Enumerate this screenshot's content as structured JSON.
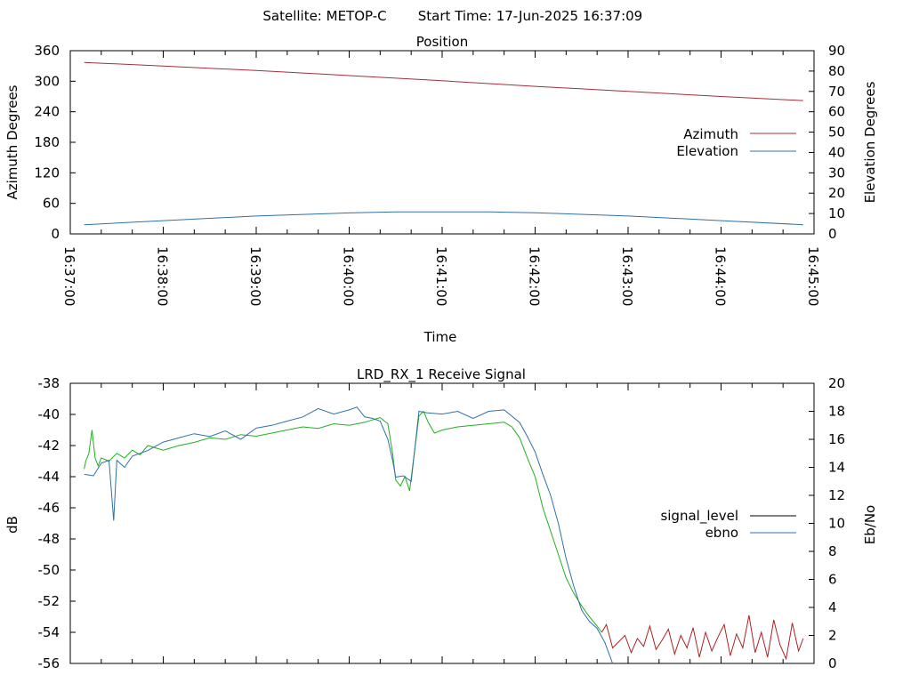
{
  "header": {
    "satellite_label": "Satellite: METOP-C",
    "start_time_label": "Start Time: 17-Jun-2025 16:37:09"
  },
  "colors": {
    "azimuth": "#a0303a",
    "elevation": "#3070a8",
    "signal_level": "#000000",
    "ebno": "#3070a8",
    "signal_trace_green": "#20b020",
    "signal_trace_red": "#b02020"
  },
  "chart_data": [
    {
      "type": "line",
      "title": "Position",
      "xlabel": "Time",
      "ylabel": "Azimuth Degrees",
      "y2label": "Elevation Degrees",
      "xlim": [
        "16:37:00",
        "16:45:00"
      ],
      "x_ticks": [
        "16:37:00",
        "16:38:00",
        "16:39:00",
        "16:40:00",
        "16:41:00",
        "16:42:00",
        "16:43:00",
        "16:44:00",
        "16:45:00"
      ],
      "ylim": [
        0,
        360
      ],
      "y_ticks": [
        "0",
        "60",
        "120",
        "180",
        "240",
        "300",
        "360"
      ],
      "y2lim": [
        0,
        90
      ],
      "y2_ticks": [
        "0",
        "10",
        "20",
        "30",
        "40",
        "50",
        "60",
        "70",
        "80",
        "90"
      ],
      "legend_position": "right",
      "series": [
        {
          "name": "Azimuth",
          "axis": "y",
          "color_key": "azimuth",
          "x": [
            "16:37:09",
            "16:38:00",
            "16:39:00",
            "16:40:00",
            "16:41:00",
            "16:42:00",
            "16:43:00",
            "16:44:00",
            "16:44:53"
          ],
          "values": [
            337,
            330,
            321,
            311,
            301,
            290,
            280,
            270,
            262
          ]
        },
        {
          "name": "Elevation",
          "axis": "y2",
          "color_key": "elevation",
          "x": [
            "16:37:09",
            "16:38:00",
            "16:39:00",
            "16:40:00",
            "16:40:30",
            "16:41:30",
            "16:42:00",
            "16:43:00",
            "16:44:00",
            "16:44:53"
          ],
          "values": [
            4.5,
            6.5,
            8.8,
            10.3,
            10.8,
            10.8,
            10.4,
            8.8,
            6.5,
            4.5
          ]
        }
      ]
    },
    {
      "type": "line",
      "title": "LRD_RX_1 Receive Signal",
      "xlabel": "",
      "ylabel": "dB",
      "y2label": "Eb/No",
      "xlim": [
        "16:37:00",
        "16:45:00"
      ],
      "ylim": [
        -56,
        -38
      ],
      "y_ticks": [
        "-56",
        "-54",
        "-52",
        "-50",
        "-48",
        "-46",
        "-44",
        "-42",
        "-40",
        "-38"
      ],
      "y2lim": [
        0,
        20
      ],
      "y2_ticks": [
        "0",
        "2",
        "4",
        "6",
        "8",
        "10",
        "12",
        "14",
        "16",
        "18",
        "20"
      ],
      "legend_position": "right",
      "series": [
        {
          "name": "signal_level",
          "axis": "y",
          "color_key": "signal_trace_green",
          "x": [
            "16:37:09",
            "16:37:10",
            "16:37:12",
            "16:37:14",
            "16:37:16",
            "16:37:18",
            "16:37:20",
            "16:37:25",
            "16:37:30",
            "16:37:35",
            "16:37:40",
            "16:37:45",
            "16:37:50",
            "16:38:00",
            "16:38:10",
            "16:38:20",
            "16:38:30",
            "16:38:40",
            "16:38:50",
            "16:39:00",
            "16:39:10",
            "16:39:20",
            "16:39:30",
            "16:39:40",
            "16:39:50",
            "16:40:00",
            "16:40:10",
            "16:40:20",
            "16:40:25",
            "16:40:28",
            "16:40:30",
            "16:40:33",
            "16:40:36",
            "16:40:39",
            "16:40:42",
            "16:40:45",
            "16:40:48",
            "16:40:51",
            "16:40:55",
            "16:41:00",
            "16:41:10",
            "16:41:20",
            "16:41:30",
            "16:41:40",
            "16:41:45",
            "16:41:50",
            "16:41:55",
            "16:42:00",
            "16:42:05",
            "16:42:10",
            "16:42:15",
            "16:42:20",
            "16:42:25",
            "16:42:30",
            "16:42:35",
            "16:42:40",
            "16:42:43"
          ],
          "values": [
            -43.5,
            -43.0,
            -42.5,
            -41.0,
            -42.8,
            -43.3,
            -42.8,
            -43.0,
            -42.5,
            -42.8,
            -42.3,
            -42.6,
            -42.0,
            -42.3,
            -42.0,
            -41.8,
            -41.5,
            -41.6,
            -41.3,
            -41.4,
            -41.2,
            -41.0,
            -40.8,
            -40.9,
            -40.6,
            -40.7,
            -40.5,
            -40.2,
            -40.6,
            -42.5,
            -44.2,
            -44.6,
            -44.0,
            -44.9,
            -42.5,
            -40.1,
            -39.8,
            -40.5,
            -41.2,
            -41.0,
            -40.8,
            -40.7,
            -40.6,
            -40.5,
            -40.8,
            -41.5,
            -42.8,
            -44.0,
            -46.0,
            -47.5,
            -49.0,
            -50.5,
            -51.5,
            -52.3,
            -53.0,
            -53.6,
            -54.0
          ]
        },
        {
          "name": "ebno",
          "axis": "y2",
          "color_key": "ebno",
          "x": [
            "16:37:09",
            "16:37:15",
            "16:37:20",
            "16:37:25",
            "16:37:28",
            "16:37:30",
            "16:37:35",
            "16:37:40",
            "16:37:50",
            "16:38:00",
            "16:38:10",
            "16:38:20",
            "16:38:30",
            "16:38:40",
            "16:38:50",
            "16:39:00",
            "16:39:10",
            "16:39:20",
            "16:39:30",
            "16:39:40",
            "16:39:50",
            "16:40:00",
            "16:40:05",
            "16:40:10",
            "16:40:15",
            "16:40:20",
            "16:40:25",
            "16:40:28",
            "16:40:30",
            "16:40:35",
            "16:40:40",
            "16:40:45",
            "16:40:50",
            "16:41:00",
            "16:41:10",
            "16:41:20",
            "16:41:30",
            "16:41:40",
            "16:41:50",
            "16:41:55",
            "16:42:00",
            "16:42:05",
            "16:42:10",
            "16:42:15",
            "16:42:20",
            "16:42:25",
            "16:42:30",
            "16:42:35",
            "16:42:40",
            "16:42:45",
            "16:42:50"
          ],
          "values": [
            13.5,
            13.4,
            14.3,
            14.5,
            10.2,
            14.5,
            14.0,
            14.8,
            15.2,
            15.8,
            16.1,
            16.4,
            16.2,
            16.6,
            16.0,
            16.8,
            17.0,
            17.3,
            17.6,
            18.2,
            17.8,
            18.1,
            18.3,
            17.6,
            17.5,
            17.3,
            16.0,
            14.5,
            13.3,
            13.4,
            13.0,
            18.0,
            17.9,
            17.8,
            18.0,
            17.5,
            18.0,
            18.1,
            17.2,
            16.2,
            15.1,
            13.5,
            12.0,
            10.0,
            7.5,
            5.5,
            3.8,
            3.0,
            2.5,
            1.5,
            0.0
          ]
        }
      ],
      "extra_trace": {
        "axis": "y",
        "color_key": "signal_trace_red",
        "x": [
          "16:42:43",
          "16:42:46",
          "16:42:50",
          "16:42:54",
          "16:42:58",
          "16:43:02",
          "16:43:06",
          "16:43:10",
          "16:43:14",
          "16:43:18",
          "16:43:22",
          "16:43:26",
          "16:43:30",
          "16:43:34",
          "16:43:38",
          "16:43:42",
          "16:43:46",
          "16:43:50",
          "16:43:54",
          "16:43:58",
          "16:44:02",
          "16:44:06",
          "16:44:10",
          "16:44:14",
          "16:44:18",
          "16:44:22",
          "16:44:26",
          "16:44:30",
          "16:44:34",
          "16:44:38",
          "16:44:42",
          "16:44:46",
          "16:44:50",
          "16:44:53"
        ],
        "values": [
          -54.0,
          -53.5,
          -55.0,
          -54.6,
          -54.2,
          -55.3,
          -54.4,
          -54.9,
          -53.6,
          -55.1,
          -54.5,
          -53.8,
          -55.4,
          -54.2,
          -55.0,
          -53.7,
          -55.6,
          -54.0,
          -55.2,
          -54.3,
          -53.5,
          -55.5,
          -54.1,
          -55.0,
          -52.9,
          -55.3,
          -54.0,
          -55.6,
          -53.2,
          -54.8,
          -55.7,
          -53.4,
          -55.2,
          -54.4
        ]
      }
    }
  ]
}
